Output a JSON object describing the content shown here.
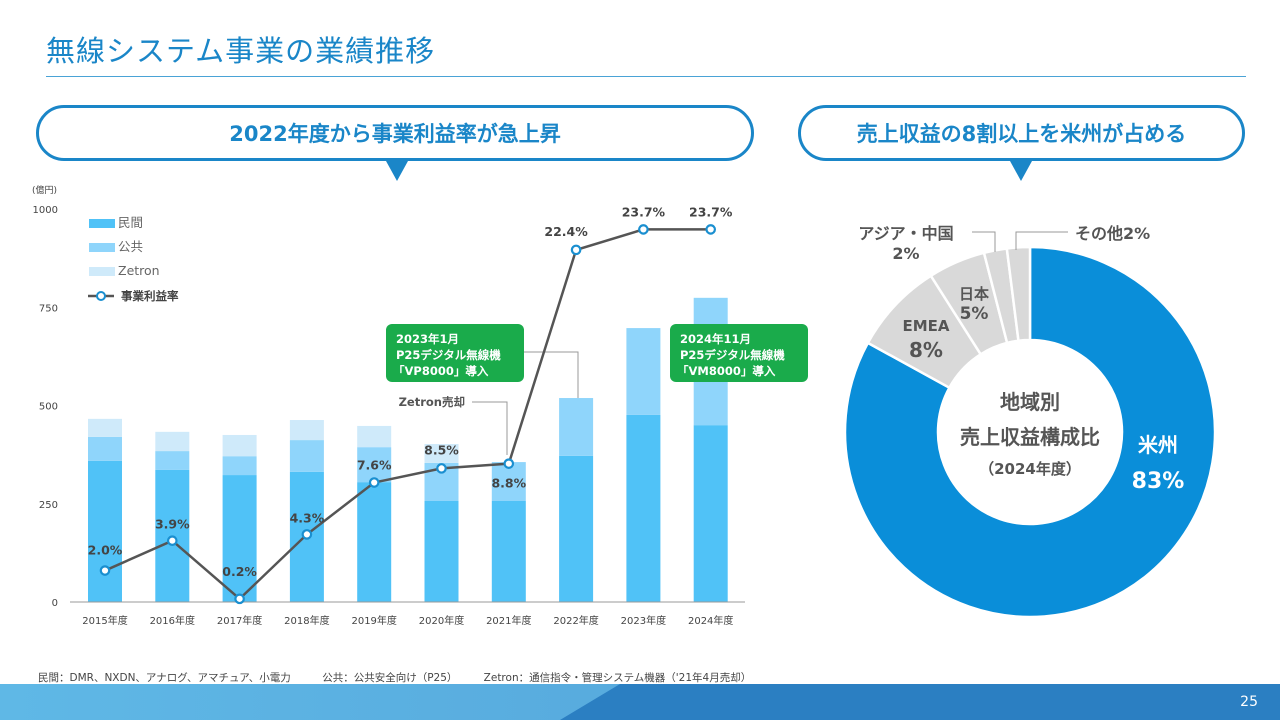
{
  "header": {
    "title": "無線システム事業の業績推移"
  },
  "left_panel": {
    "headline": "2022年度から事業利益率が急上昇"
  },
  "right_panel": {
    "headline": "売上収益の8割以上を米州が占める"
  },
  "chart_data": [
    {
      "type": "bar+line",
      "ylabel": "(億円)",
      "ylim": [
        0,
        1000
      ],
      "yticks": [
        "0",
        "250",
        "500",
        "750",
        "1000"
      ],
      "y2lim": [
        0,
        25
      ],
      "categories": [
        "2015年度",
        "2016年度",
        "2017年度",
        "2018年度",
        "2019年度",
        "2020年度",
        "2021年度",
        "2022年度",
        "2023年度",
        "2024年度"
      ],
      "series": [
        {
          "name": "民間",
          "type": "stacked-bar",
          "color": "#50c2f7",
          "values": [
            359,
            336,
            323,
            331,
            305,
            257,
            257,
            372,
            476,
            450
          ]
        },
        {
          "name": "公共",
          "type": "stacked-bar",
          "color": "#8fd5fb",
          "values": [
            61,
            48,
            48,
            81,
            89,
            97,
            99,
            147,
            221,
            324
          ]
        },
        {
          "name": "Zetron",
          "type": "stacked-bar",
          "color": "#cfeafa",
          "values": [
            46,
            49,
            54,
            51,
            54,
            48,
            0,
            0,
            0,
            0
          ]
        },
        {
          "name": "事業利益率",
          "type": "line",
          "axis": "secondary",
          "color": "#555555",
          "marker_color": "#1a8fd0",
          "values": [
            2.0,
            3.9,
            0.2,
            4.3,
            7.6,
            8.5,
            8.8,
            22.4,
            23.7,
            23.7
          ],
          "labels": [
            "2.0%",
            "3.9%",
            "0.2%",
            "4.3%",
            "7.6%",
            "8.5%",
            "8.8%",
            "22.4%",
            "23.7%",
            "23.7%"
          ]
        }
      ],
      "legend_position": "top-left",
      "annotations": [
        {
          "category": "2021年度",
          "text": "Zetron売却"
        },
        {
          "category": "2022年度",
          "lines": [
            "2023年1月",
            "P25デジタル無線機",
            "「VP8000」導入"
          ],
          "color": "#1aab4b"
        },
        {
          "category": "2024年度",
          "lines": [
            "2024年11月",
            "P25デジタル無線機",
            "「VM8000」導入"
          ],
          "color": "#1aab4b"
        }
      ]
    },
    {
      "type": "donut",
      "center_lines": [
        "地域別",
        "売上収益構成比",
        "（2024年度）"
      ],
      "slices": [
        {
          "name": "米州",
          "value": 83,
          "label": "83%",
          "color": "#0a8ed9"
        },
        {
          "name": "EMEA",
          "value": 8,
          "label": "8%",
          "color": "#d9d9d9"
        },
        {
          "name": "日本",
          "value": 5,
          "label": "5%",
          "color": "#d9d9d9"
        },
        {
          "name": "アジア・中国",
          "value": 2,
          "label": "2%",
          "color": "#d9d9d9"
        },
        {
          "name": "その他",
          "value": 2,
          "label": "その他2%",
          "color": "#d9d9d9"
        }
      ]
    }
  ],
  "footnote": "民間：DMR、NXDN、アナログ、アマチュア、小電力　　　公共：公共安全向け（P25）　　　Zetron：通信指令・管理システム機器（'21年4月売却）",
  "page_number": "25"
}
